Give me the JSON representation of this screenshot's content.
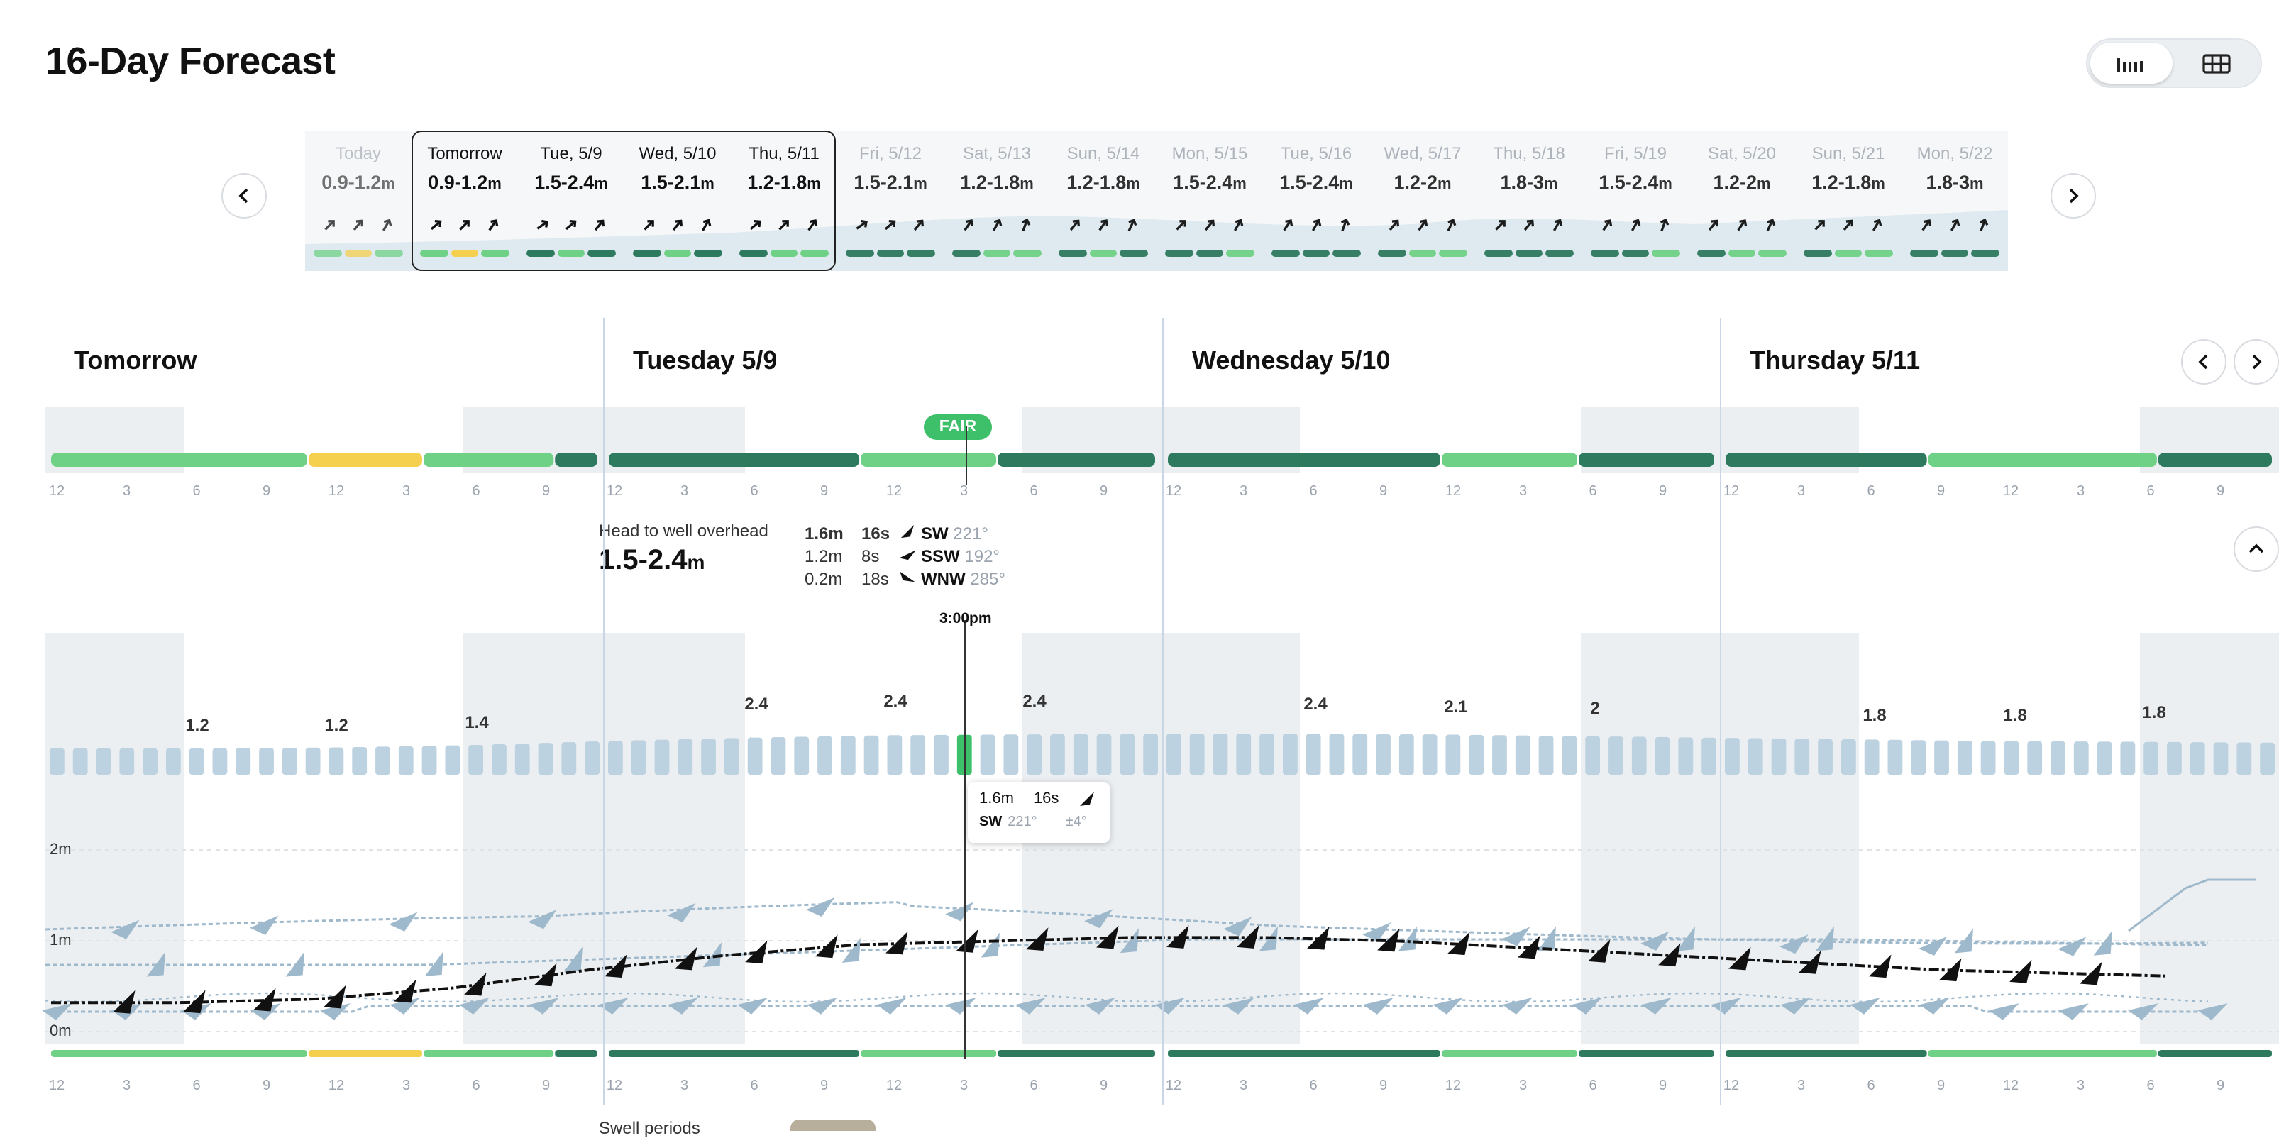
{
  "page_title": "16-Day Forecast",
  "colors": {
    "great": "#2d7a5e",
    "good": "#6fd186",
    "fair": "#f5cf4e",
    "chart_bar": "#bdd2e0",
    "active_bar": "#3ec06a",
    "wave_line": "#111111",
    "swell_line": "#9fb9cc"
  },
  "view_toggle": {
    "selected": "chart-view",
    "options": [
      "chart-view-icon",
      "table-view-icon"
    ]
  },
  "days": [
    {
      "name": "Today",
      "height": "0.9-1.2",
      "unit": "m",
      "ratings": [
        "good",
        "fair",
        "good"
      ]
    },
    {
      "name": "Tomorrow",
      "height": "0.9-1.2",
      "unit": "m",
      "ratings": [
        "good",
        "fair",
        "good"
      ]
    },
    {
      "name": "Tue, 5/9",
      "height": "1.5-2.4",
      "unit": "m",
      "ratings": [
        "great",
        "good",
        "great"
      ]
    },
    {
      "name": "Wed, 5/10",
      "height": "1.5-2.1",
      "unit": "m",
      "ratings": [
        "great",
        "good",
        "great"
      ]
    },
    {
      "name": "Thu, 5/11",
      "height": "1.2-1.8",
      "unit": "m",
      "ratings": [
        "great",
        "good",
        "good"
      ]
    },
    {
      "name": "Fri, 5/12",
      "height": "1.5-2.1",
      "unit": "m",
      "ratings": [
        "great",
        "great",
        "great"
      ]
    },
    {
      "name": "Sat, 5/13",
      "height": "1.2-1.8",
      "unit": "m",
      "ratings": [
        "great",
        "good",
        "good"
      ]
    },
    {
      "name": "Sun, 5/14",
      "height": "1.2-1.8",
      "unit": "m",
      "ratings": [
        "great",
        "good",
        "great"
      ]
    },
    {
      "name": "Mon, 5/15",
      "height": "1.5-2.4",
      "unit": "m",
      "ratings": [
        "great",
        "great",
        "good"
      ]
    },
    {
      "name": "Tue, 5/16",
      "height": "1.5-2.4",
      "unit": "m",
      "ratings": [
        "great",
        "great",
        "great"
      ]
    },
    {
      "name": "Wed, 5/17",
      "height": "1.2-2",
      "unit": "m",
      "ratings": [
        "great",
        "good",
        "good"
      ]
    },
    {
      "name": "Thu, 5/18",
      "height": "1.8-3",
      "unit": "m",
      "ratings": [
        "great",
        "great",
        "great"
      ]
    },
    {
      "name": "Fri, 5/19",
      "height": "1.5-2.4",
      "unit": "m",
      "ratings": [
        "great",
        "great",
        "good"
      ]
    },
    {
      "name": "Sat, 5/20",
      "height": "1.2-2",
      "unit": "m",
      "ratings": [
        "great",
        "good",
        "good"
      ]
    },
    {
      "name": "Sun, 5/21",
      "height": "1.2-1.8",
      "unit": "m",
      "ratings": [
        "great",
        "good",
        "good"
      ]
    },
    {
      "name": "Mon, 5/22",
      "height": "1.8-3",
      "unit": "m",
      "ratings": [
        "great",
        "great",
        "great"
      ]
    }
  ],
  "detail": {
    "day_headers": [
      "Tomorrow",
      "Tuesday 5/9",
      "Wednesday 5/10",
      "Thursday 5/11"
    ],
    "hour_ticks": [
      "12",
      "3",
      "6",
      "9",
      "12",
      "3",
      "6",
      "9"
    ],
    "rating_badge": "FAIR",
    "rating_segments": [
      {
        "day": 0,
        "from": 0,
        "to": 0.47,
        "r": "good"
      },
      {
        "day": 0,
        "from": 0.47,
        "to": 0.68,
        "r": "fair"
      },
      {
        "day": 0,
        "from": 0.68,
        "to": 0.92,
        "r": "good"
      },
      {
        "day": 0,
        "from": 0.92,
        "to": 1,
        "r": "great"
      },
      {
        "day": 1,
        "from": 0,
        "to": 0.46,
        "r": "great"
      },
      {
        "day": 1,
        "from": 0.46,
        "to": 0.71,
        "r": "good"
      },
      {
        "day": 1,
        "from": 0.71,
        "to": 1,
        "r": "great"
      },
      {
        "day": 2,
        "from": 0,
        "to": 0.5,
        "r": "great"
      },
      {
        "day": 2,
        "from": 0.5,
        "to": 0.75,
        "r": "good"
      },
      {
        "day": 2,
        "from": 0.75,
        "to": 1,
        "r": "great"
      },
      {
        "day": 3,
        "from": 0,
        "to": 0.37,
        "r": "great"
      },
      {
        "day": 3,
        "from": 0.37,
        "to": 0.79,
        "r": "good"
      },
      {
        "day": 3,
        "from": 0.79,
        "to": 1,
        "r": "great"
      }
    ],
    "summary": {
      "label": "Head to well overhead",
      "height": "1.5-2.4",
      "unit": "m"
    },
    "swells": [
      {
        "height": "1.6m",
        "period": "16s",
        "dir": "SW",
        "deg": "221°"
      },
      {
        "height": "1.2m",
        "period": "8s",
        "dir": "SSW",
        "deg": "192°"
      },
      {
        "height": "0.2m",
        "period": "18s",
        "dir": "WNW",
        "deg": "285°"
      }
    ],
    "selected_time": "3:00pm",
    "tooltip": {
      "height": "1.6m",
      "period": "16s",
      "dir": "SW",
      "deg": "221°",
      "spread": "±4°"
    },
    "y_labels": [
      "2m",
      "1m",
      "0m"
    ],
    "bar_labels": [
      "1.2",
      "1.2",
      "1.4",
      "2.4",
      "2.4",
      "2.4",
      "2.4",
      "2.1",
      "2",
      "1.8",
      "1.8",
      "1.8"
    ],
    "bottom_label": "Swell periods"
  },
  "chart_data": {
    "type": "bar",
    "title": "",
    "xlabel": "",
    "ylabel": "",
    "x": [
      "Tomorrow 12am",
      "Tomorrow 6am",
      "Tomorrow 12pm",
      "Tomorrow 6pm",
      "Tue 12am",
      "Tue 6am",
      "Tue 12pm",
      "Tue 3pm",
      "Tue 6pm",
      "Wed 12am",
      "Wed 6am",
      "Wed 12pm",
      "Wed 6pm",
      "Thu 12am",
      "Thu 6am",
      "Thu 12pm",
      "Thu 6pm"
    ],
    "series": [
      {
        "values": [
          0.75,
          0.75,
          0.8,
          0.95,
          1.2,
          1.4,
          1.55,
          1.6,
          1.65,
          1.65,
          1.6,
          1.5,
          1.4,
          1.3,
          1.2,
          1.15,
          1.1
        ]
      }
    ],
    "ylim": [
      0,
      2
    ]
  }
}
